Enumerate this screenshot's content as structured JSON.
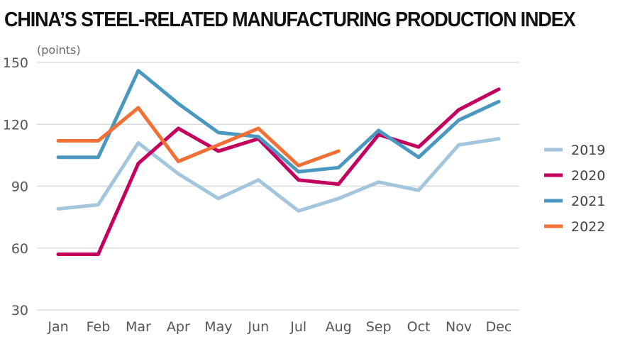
{
  "chart_data": {
    "type": "line",
    "title": "CHINA’S STEEL-RELATED MANUFACTURING PRODUCTION INDEX",
    "ylabel": "(points)",
    "xlabel": "",
    "categories": [
      "Jan",
      "Feb",
      "Mar",
      "Apr",
      "May",
      "Jun",
      "Jul",
      "Aug",
      "Sep",
      "Oct",
      "Nov",
      "Dec"
    ],
    "ylim": [
      30,
      150
    ],
    "yticks": [
      30,
      60,
      90,
      120,
      150
    ],
    "grid": true,
    "legend_position": "right",
    "series": [
      {
        "name": "2019",
        "color": "#a3c6dd",
        "values": [
          79,
          81,
          111,
          96,
          84,
          93,
          78,
          84,
          92,
          88,
          110,
          113
        ]
      },
      {
        "name": "2020",
        "color": "#c4005f",
        "values": [
          57,
          57,
          101,
          118,
          107,
          113,
          93,
          91,
          115,
          109,
          127,
          137
        ]
      },
      {
        "name": "2021",
        "color": "#4a98c0",
        "values": [
          104,
          104,
          146,
          130,
          116,
          114,
          97,
          99,
          117,
          104,
          122,
          131
        ]
      },
      {
        "name": "2022",
        "color": "#f26f35",
        "values": [
          112,
          112,
          128,
          102,
          110,
          118,
          100,
          107
        ]
      }
    ]
  }
}
